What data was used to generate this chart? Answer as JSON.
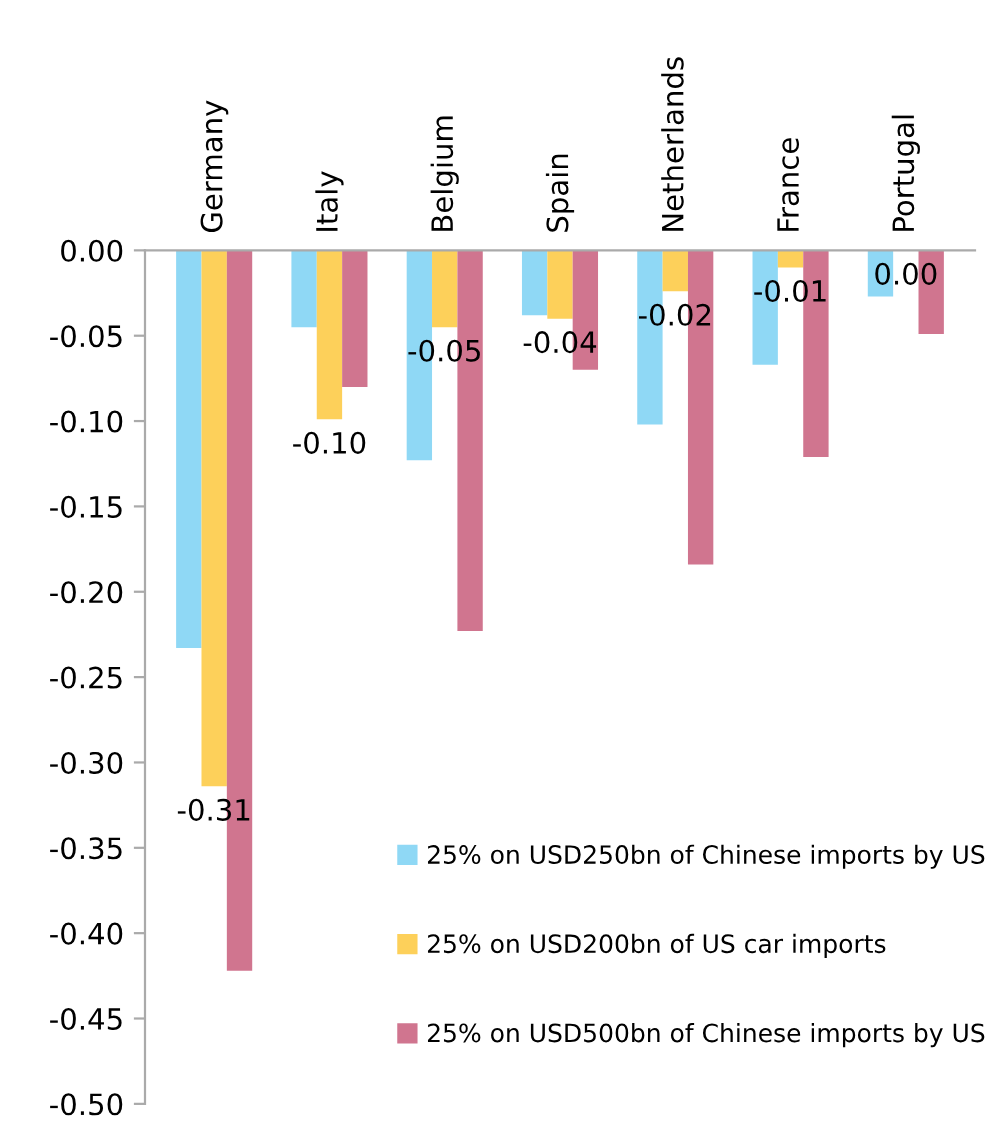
{
  "chart_data": {
    "type": "bar",
    "categories": [
      "Germany",
      "Italy",
      "Belgium",
      "Spain",
      "Netherlands",
      "France",
      "Portugal"
    ],
    "series": [
      {
        "name": "25% on USD250bn of Chinese imports by US",
        "color": "#8fd8f5",
        "values": [
          -0.233,
          -0.045,
          -0.123,
          -0.038,
          -0.102,
          -0.067,
          -0.027
        ]
      },
      {
        "name": "25% on USD200bn of US car imports",
        "color": "#fdd05a",
        "values": [
          -0.314,
          -0.099,
          -0.045,
          -0.04,
          -0.024,
          -0.01,
          0.0
        ],
        "value_labels": [
          "-0.31",
          "-0.10",
          "-0.05",
          "-0.04",
          "-0.02",
          "-0.01",
          "0.00"
        ]
      },
      {
        "name": "25% on USD500bn of Chinese imports by US",
        "color": "#d0758f",
        "values": [
          -0.422,
          -0.08,
          -0.223,
          -0.07,
          -0.184,
          -0.121,
          -0.049
        ]
      }
    ],
    "ylim": [
      -0.5,
      0
    ],
    "yticks": [
      {
        "value": 0,
        "label": "0.00"
      },
      {
        "value": -0.05,
        "label": "-0.05"
      },
      {
        "value": -0.1,
        "label": "-0.10"
      },
      {
        "value": -0.15,
        "label": "-0.15"
      },
      {
        "value": -0.2,
        "label": "-0.20"
      },
      {
        "value": -0.25,
        "label": "-0.25"
      },
      {
        "value": -0.3,
        "label": "-0.30"
      },
      {
        "value": -0.35,
        "label": "-0.35"
      },
      {
        "value": -0.4,
        "label": "-0.40"
      },
      {
        "value": -0.45,
        "label": "-0.45"
      },
      {
        "value": -0.5,
        "label": "-0.50"
      }
    ],
    "grid": false,
    "legend": "bottom right"
  }
}
